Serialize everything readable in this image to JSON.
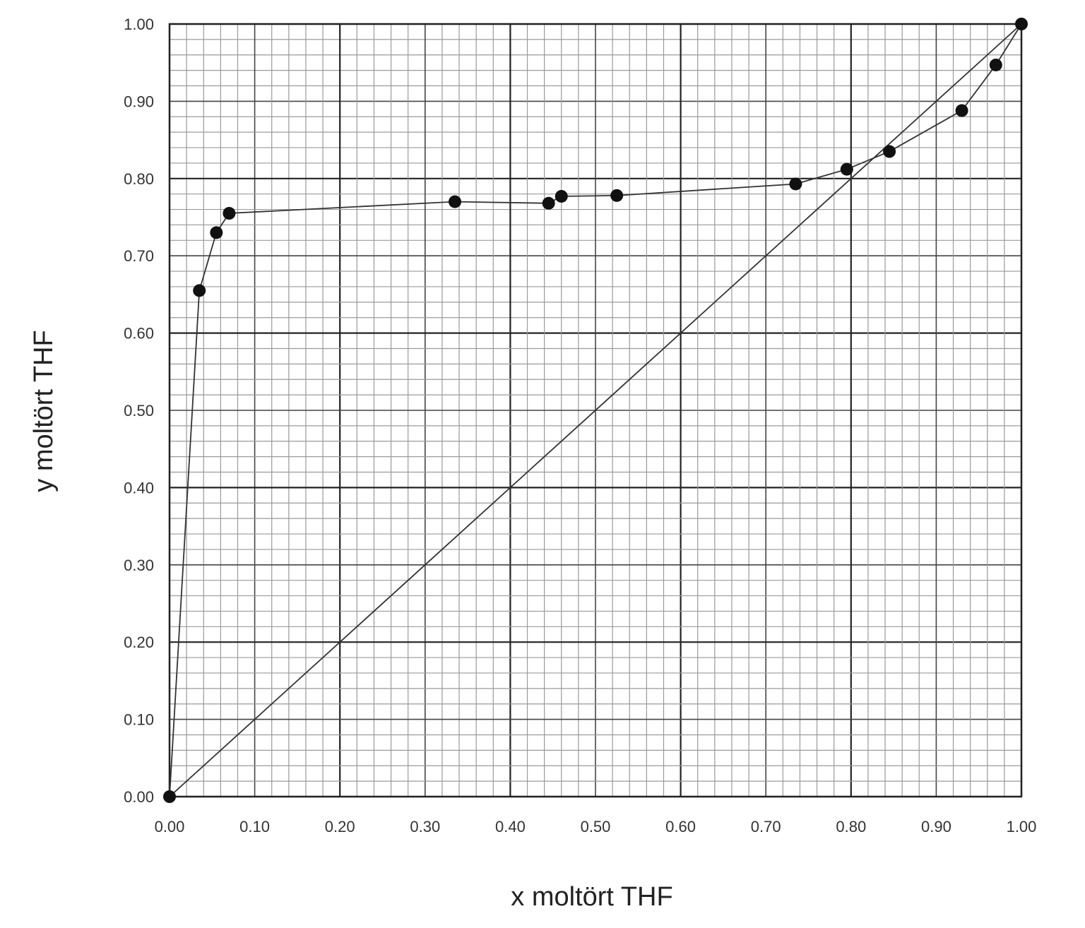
{
  "chart_data": {
    "type": "scatter",
    "title": "",
    "xlabel": "x moltört THF",
    "ylabel": "y moltört THF",
    "xlim": [
      0,
      1
    ],
    "ylim": [
      0,
      1
    ],
    "grid": true,
    "x_ticks": [
      "0.00",
      "0.10",
      "0.20",
      "0.30",
      "0.40",
      "0.50",
      "0.60",
      "0.70",
      "0.80",
      "0.90",
      "1.00"
    ],
    "y_ticks": [
      "0.00",
      "0.10",
      "0.20",
      "0.30",
      "0.40",
      "0.50",
      "0.60",
      "0.70",
      "0.80",
      "0.90",
      "1.00"
    ],
    "series": [
      {
        "marker": "circle",
        "connected": true,
        "points": [
          {
            "x": 0.0,
            "y": 0.0
          },
          {
            "x": 0.035,
            "y": 0.655
          },
          {
            "x": 0.055,
            "y": 0.73
          },
          {
            "x": 0.07,
            "y": 0.755
          },
          {
            "x": 0.335,
            "y": 0.77
          },
          {
            "x": 0.445,
            "y": 0.768
          },
          {
            "x": 0.46,
            "y": 0.777
          },
          {
            "x": 0.525,
            "y": 0.778
          },
          {
            "x": 0.735,
            "y": 0.793
          },
          {
            "x": 0.795,
            "y": 0.812
          },
          {
            "x": 0.845,
            "y": 0.835
          },
          {
            "x": 0.93,
            "y": 0.888
          },
          {
            "x": 0.97,
            "y": 0.947
          },
          {
            "x": 1.0,
            "y": 1.0
          }
        ]
      },
      {
        "marker": "none",
        "connected": true,
        "points": [
          {
            "x": 0.0,
            "y": 0.0
          },
          {
            "x": 1.0,
            "y": 1.0
          }
        ]
      }
    ]
  }
}
